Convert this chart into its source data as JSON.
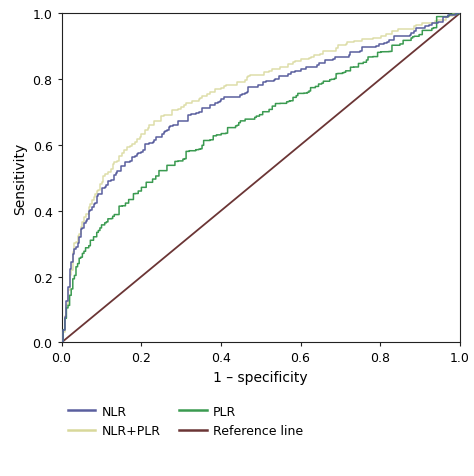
{
  "title": "",
  "xlabel": "1 – specificity",
  "ylabel": "Sensitivity",
  "xlim": [
    0.0,
    1.0
  ],
  "ylim": [
    0.0,
    1.0
  ],
  "xticks": [
    0.0,
    0.2,
    0.4,
    0.6,
    0.8,
    1.0
  ],
  "yticks": [
    0.0,
    0.2,
    0.4,
    0.6,
    0.8,
    1.0
  ],
  "colors": {
    "NLR": "#5a5f9e",
    "PLR": "#3a9a50",
    "NLR+PLR": "#d8d89a",
    "Reference": "#6b3535"
  },
  "legend_labels": [
    "NLR",
    "PLR",
    "NLR+PLR",
    "Reference line"
  ],
  "background_color": "#ffffff",
  "figsize": [
    4.74,
    4.77
  ],
  "dpi": 100,
  "nlr_key_fpr": [
    0,
    0.005,
    0.01,
    0.02,
    0.03,
    0.05,
    0.08,
    0.1,
    0.13,
    0.15,
    0.18,
    0.2,
    0.25,
    0.3,
    0.35,
    0.4,
    0.45,
    0.5,
    0.55,
    0.6,
    0.65,
    0.7,
    0.75,
    0.8,
    0.85,
    0.9,
    0.95,
    1.0
  ],
  "nlr_key_tpr": [
    0,
    0.05,
    0.1,
    0.22,
    0.28,
    0.35,
    0.42,
    0.46,
    0.5,
    0.53,
    0.56,
    0.58,
    0.63,
    0.67,
    0.7,
    0.73,
    0.75,
    0.78,
    0.8,
    0.82,
    0.84,
    0.86,
    0.88,
    0.9,
    0.92,
    0.95,
    0.97,
    1.0
  ],
  "plr_key_fpr": [
    0,
    0.005,
    0.01,
    0.02,
    0.03,
    0.05,
    0.08,
    0.1,
    0.13,
    0.15,
    0.18,
    0.2,
    0.25,
    0.3,
    0.35,
    0.4,
    0.45,
    0.5,
    0.55,
    0.6,
    0.65,
    0.7,
    0.75,
    0.8,
    0.85,
    0.9,
    0.95,
    1.0
  ],
  "plr_key_tpr": [
    0,
    0.04,
    0.08,
    0.14,
    0.2,
    0.26,
    0.32,
    0.35,
    0.38,
    0.41,
    0.44,
    0.46,
    0.51,
    0.55,
    0.59,
    0.63,
    0.66,
    0.69,
    0.72,
    0.75,
    0.78,
    0.81,
    0.84,
    0.87,
    0.9,
    0.93,
    0.97,
    1.0
  ],
  "combo_key_fpr": [
    0,
    0.005,
    0.01,
    0.02,
    0.03,
    0.05,
    0.08,
    0.1,
    0.13,
    0.15,
    0.18,
    0.2,
    0.25,
    0.3,
    0.35,
    0.4,
    0.45,
    0.5,
    0.55,
    0.6,
    0.65,
    0.7,
    0.75,
    0.8,
    0.85,
    0.9,
    0.95,
    1.0
  ],
  "combo_key_tpr": [
    0,
    0.05,
    0.1,
    0.2,
    0.28,
    0.36,
    0.44,
    0.49,
    0.54,
    0.57,
    0.6,
    0.63,
    0.68,
    0.71,
    0.74,
    0.77,
    0.79,
    0.81,
    0.83,
    0.85,
    0.87,
    0.89,
    0.91,
    0.92,
    0.94,
    0.96,
    0.97,
    1.0
  ]
}
